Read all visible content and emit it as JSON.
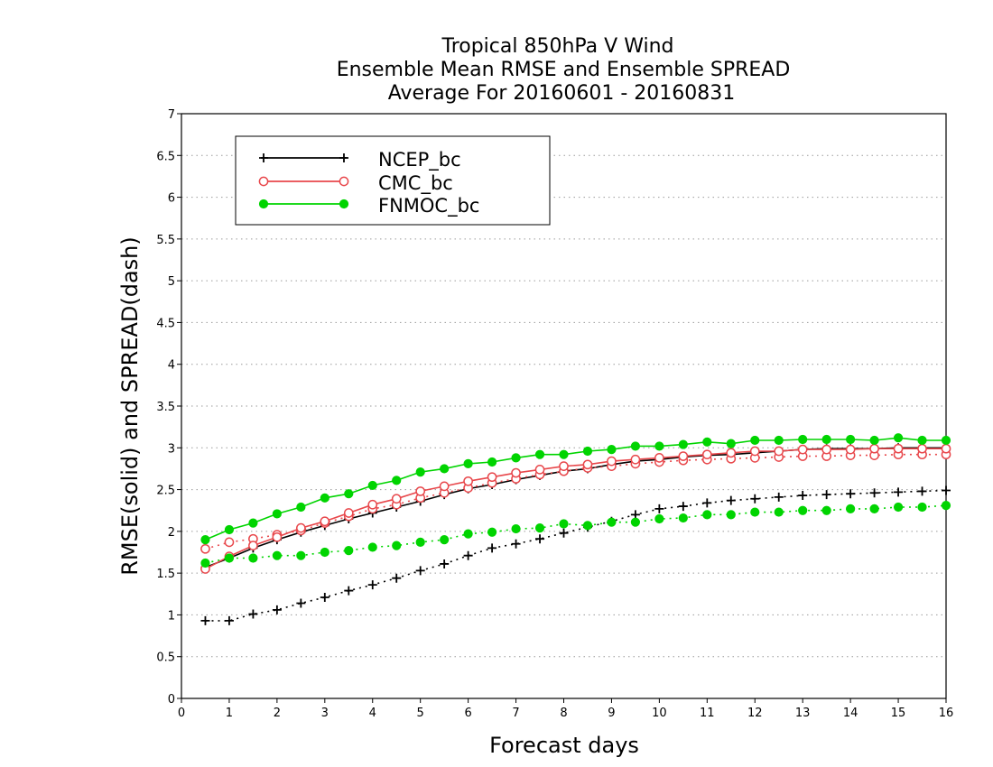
{
  "chart_data": {
    "type": "line",
    "title_lines": [
      "Tropical 850hPa V Wind",
      "Ensemble Mean RMSE and Ensemble SPREAD",
      "Average For 20160601 - 20160831"
    ],
    "xlabel": "Forecast days",
    "ylabel": "RMSE(solid) and SPREAD(dash)",
    "xlim": [
      0,
      16
    ],
    "ylim": [
      0,
      7
    ],
    "x_ticks": [
      "0",
      "1",
      "2",
      "3",
      "4",
      "5",
      "6",
      "7",
      "8",
      "9",
      "10",
      "11",
      "12",
      "13",
      "14",
      "15",
      "16"
    ],
    "y_ticks": [
      "0",
      "0.5",
      "1",
      "1.5",
      "2",
      "2.5",
      "3",
      "3.5",
      "4",
      "4.5",
      "5",
      "5.5",
      "6",
      "6.5",
      "7"
    ],
    "grid": "horizontal dotted",
    "legend_position": "top-left",
    "x": [
      0.5,
      1,
      1.5,
      2,
      2.5,
      3,
      3.5,
      4,
      4.5,
      5,
      5.5,
      6,
      6.5,
      7,
      7.5,
      8,
      8.5,
      9,
      9.5,
      10,
      10.5,
      11,
      11.5,
      12,
      12.5,
      13,
      13.5,
      14,
      14.5,
      15,
      15.5,
      16
    ],
    "series": [
      {
        "name": "NCEP_bc",
        "color": "#000000",
        "marker": "plus",
        "rmse": [
          1.57,
          1.68,
          1.8,
          1.9,
          1.99,
          2.07,
          2.15,
          2.22,
          2.29,
          2.36,
          2.44,
          2.51,
          2.56,
          2.62,
          2.67,
          2.72,
          2.75,
          2.8,
          2.84,
          2.86,
          2.89,
          2.91,
          2.92,
          2.94,
          2.96,
          2.98,
          2.99,
          2.99,
          2.99,
          3.0,
          3.0,
          3.0
        ],
        "spread": [
          0.93,
          0.93,
          1.01,
          1.06,
          1.14,
          1.21,
          1.29,
          1.36,
          1.44,
          1.53,
          1.61,
          1.71,
          1.8,
          1.85,
          1.91,
          1.98,
          2.05,
          2.12,
          2.2,
          2.27,
          2.3,
          2.34,
          2.37,
          2.39,
          2.41,
          2.43,
          2.44,
          2.45,
          2.46,
          2.47,
          2.48,
          2.49
        ]
      },
      {
        "name": "CMC_bc",
        "color": "#e8474b",
        "marker": "open-circle",
        "rmse": [
          1.55,
          1.7,
          1.83,
          1.93,
          2.04,
          2.12,
          2.22,
          2.32,
          2.39,
          2.48,
          2.54,
          2.6,
          2.65,
          2.7,
          2.74,
          2.78,
          2.8,
          2.84,
          2.86,
          2.88,
          2.9,
          2.92,
          2.94,
          2.96,
          2.96,
          2.98,
          2.98,
          2.98,
          2.99,
          2.99,
          2.99,
          2.99
        ],
        "spread": [
          1.79,
          1.87,
          1.91,
          1.96,
          2.01,
          2.1,
          2.18,
          2.27,
          2.32,
          2.4,
          2.46,
          2.52,
          2.58,
          2.63,
          2.68,
          2.72,
          2.76,
          2.78,
          2.81,
          2.83,
          2.85,
          2.86,
          2.87,
          2.88,
          2.89,
          2.9,
          2.9,
          2.91,
          2.91,
          2.92,
          2.92,
          2.92
        ]
      },
      {
        "name": "FNMOC_bc",
        "color": "#00d400",
        "marker": "filled-circle",
        "rmse": [
          1.9,
          2.02,
          2.1,
          2.21,
          2.29,
          2.4,
          2.45,
          2.55,
          2.61,
          2.71,
          2.75,
          2.81,
          2.83,
          2.88,
          2.92,
          2.92,
          2.96,
          2.98,
          3.02,
          3.02,
          3.04,
          3.07,
          3.05,
          3.09,
          3.09,
          3.1,
          3.1,
          3.1,
          3.09,
          3.12,
          3.09,
          3.09
        ],
        "spread": [
          1.62,
          1.68,
          1.68,
          1.71,
          1.71,
          1.75,
          1.77,
          1.81,
          1.83,
          1.87,
          1.9,
          1.97,
          1.99,
          2.03,
          2.04,
          2.09,
          2.07,
          2.11,
          2.11,
          2.15,
          2.16,
          2.2,
          2.2,
          2.23,
          2.23,
          2.25,
          2.25,
          2.27,
          2.27,
          2.29,
          2.29,
          2.31
        ]
      }
    ]
  }
}
